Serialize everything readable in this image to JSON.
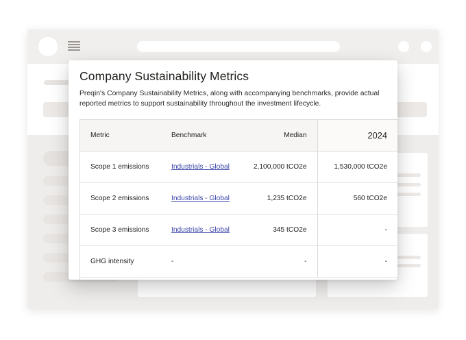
{
  "modal": {
    "title": "Company Sustainability Metrics",
    "description": "Preqin's Company Sustainability Metrics, along with accompanying benchmarks, provide actual reported metrics to support sustainability throughout the investment lifecycle."
  },
  "table": {
    "headers": {
      "metric": "Metric",
      "benchmark": "Benchmark",
      "median": "Median",
      "year": "2024"
    },
    "rows": [
      {
        "metric": "Scope 1 emissions",
        "benchmark": "Industrials - Global",
        "median": "2,100,000 tCO2e",
        "year": "1,530,000 tCO2e"
      },
      {
        "metric": "Scope 2 emissions",
        "benchmark": "Industrials - Global",
        "median": "1,235 tCO2e",
        "year": "560 tCO2e"
      },
      {
        "metric": "Scope 3 emissions",
        "benchmark": "Industrials - Global",
        "median": "345 tCO2e",
        "year": "-"
      },
      {
        "metric": "GHG intensity",
        "benchmark": "-",
        "median": "-",
        "year": "-"
      }
    ]
  },
  "colors": {
    "link": "#3b45a8",
    "window_background": "#efedeb",
    "header_row": "#f6f5f3"
  },
  "icons": {
    "app_logo": "logo-circle",
    "menu": "hamburger-menu-icon"
  }
}
